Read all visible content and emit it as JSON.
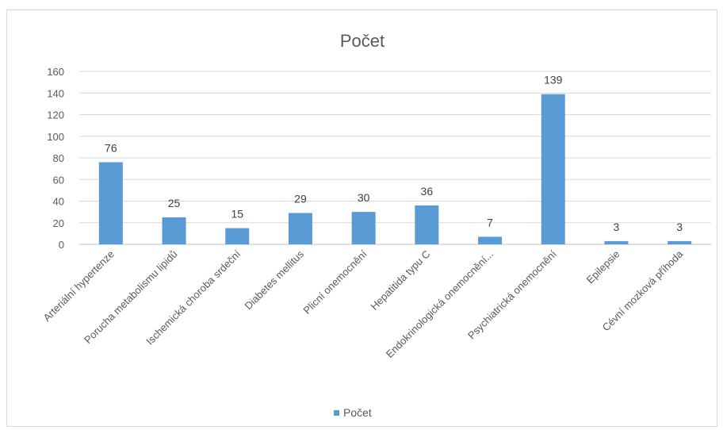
{
  "chart_data": {
    "type": "bar",
    "title": "Počet",
    "xlabel": "",
    "ylabel": "",
    "ylim": [
      0,
      160
    ],
    "yticks": [
      0,
      20,
      40,
      60,
      80,
      100,
      120,
      140,
      160
    ],
    "grid": true,
    "legend_position": "bottom",
    "bar_color": "#5B9BD5",
    "categories": [
      "Arteriální hypertenze",
      "Porucha metabolismu lipidů",
      "Ischemická choroba srdeční",
      "Diabetes mellitus",
      "Plicní onemocnění",
      "Hepatitida typu C",
      "Endokrinologická onemocnění...",
      "Psychiatrická onemocnění",
      "Epilepsie",
      "Cévní mozková příhoda"
    ],
    "series": [
      {
        "name": "Počet",
        "values": [
          76,
          25,
          15,
          29,
          30,
          36,
          7,
          139,
          3,
          3
        ]
      }
    ]
  }
}
